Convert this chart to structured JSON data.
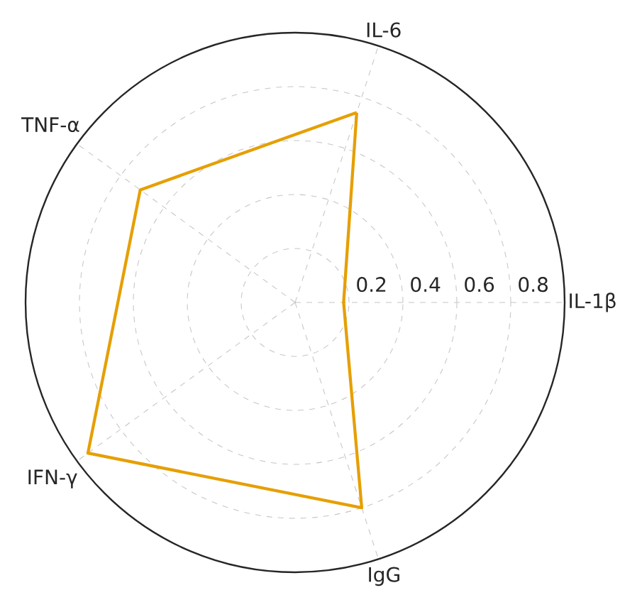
{
  "chart_data": {
    "type": "radar",
    "categories": [
      "IL-6",
      "IL-1β",
      "IgG",
      "IFN-γ",
      "TNF-α"
    ],
    "series": [
      {
        "color": "#e69f00",
        "values": [
          0.74,
          0.18,
          0.8,
          0.95,
          0.71
        ]
      }
    ],
    "ylim": [
      0,
      1
    ],
    "yticks": [
      0.2,
      0.4,
      0.6,
      0.8
    ],
    "grid": true,
    "marker": "none",
    "line_style": "solid"
  }
}
